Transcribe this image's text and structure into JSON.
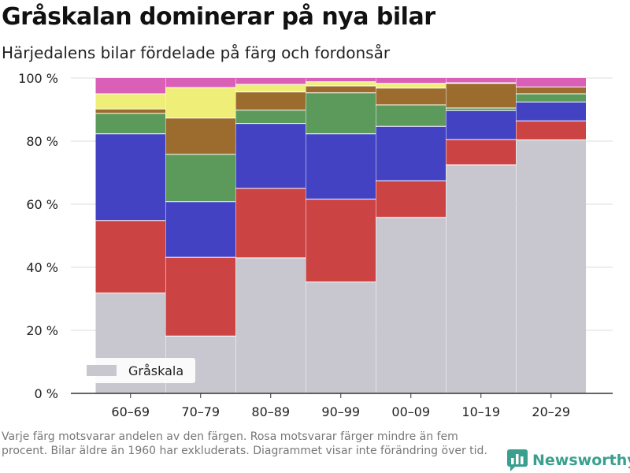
{
  "title": "Gråskalan dominerar på nya bilar",
  "subtitle": "Härjedalens bilar fördelade på färg och fordonsår",
  "footnote": "Varje färg motsvarar andelen av den färgen. Rosa motsvarar färger mindre än fem procent. Bilar äldre än 1960 har exkluderats. Diagrammet visar inte förändring över tid.",
  "brand": {
    "name": "Newsworthy",
    "icon": "bar-chart-logo-icon"
  },
  "colors": {
    "gray": "#c8c7cf",
    "red": "#cc4343",
    "blue": "#4242c3",
    "green": "#5c9a5c",
    "brown": "#9b6c2e",
    "yellow": "#eeee78",
    "pink": "#d95fb7",
    "brand": "#3a9f8f"
  },
  "chart_data": {
    "type": "bar",
    "stacked": true,
    "categories": [
      "60–69",
      "70–79",
      "80–89",
      "90–99",
      "00–09",
      "10–19",
      "20–29"
    ],
    "y_ticks": [
      "0 %",
      "20 %",
      "40 %",
      "60 %",
      "80 %",
      "100 %"
    ],
    "ylim": [
      0,
      100
    ],
    "grid": true,
    "legend": {
      "position": "bottom-left",
      "entries": [
        "Gråskala"
      ]
    },
    "series": [
      {
        "name": "Gråskala",
        "color": "gray",
        "values": [
          31.8,
          18.2,
          43.0,
          35.3,
          55.8,
          72.5,
          80.4
        ]
      },
      {
        "color": "red",
        "values": [
          23.0,
          25.0,
          22.0,
          26.3,
          11.6,
          8.0,
          6.0
        ]
      },
      {
        "color": "blue",
        "values": [
          27.5,
          17.6,
          20.6,
          20.7,
          17.3,
          9.2,
          6.0
        ]
      },
      {
        "color": "green",
        "values": [
          6.5,
          15.0,
          4.2,
          13.0,
          6.8,
          0.8,
          2.6
        ]
      },
      {
        "color": "brown",
        "values": [
          1.4,
          11.5,
          5.8,
          2.2,
          5.3,
          7.8,
          2.2
        ]
      },
      {
        "color": "yellow",
        "values": [
          4.8,
          9.7,
          2.4,
          1.3,
          1.5,
          0.2,
          0.0
        ]
      },
      {
        "color": "pink",
        "values": [
          5.0,
          3.0,
          2.0,
          1.2,
          1.7,
          1.5,
          2.8
        ]
      }
    ]
  }
}
